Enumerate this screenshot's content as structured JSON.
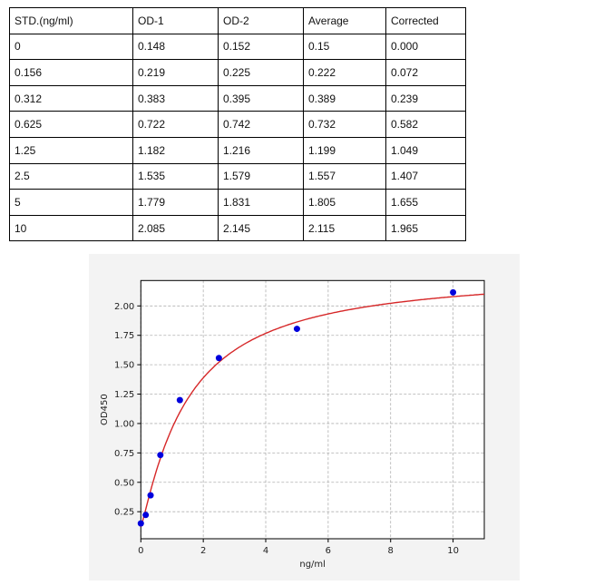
{
  "table": {
    "headers": [
      "STD.(ng/ml)",
      "OD-1",
      "OD-2",
      "Average",
      "Corrected"
    ],
    "rows": [
      [
        "0",
        "0.148",
        "0.152",
        "0.15",
        "0.000"
      ],
      [
        "0.156",
        "0.219",
        "0.225",
        "0.222",
        "0.072"
      ],
      [
        "0.312",
        "0.383",
        "0.395",
        "0.389",
        "0.239"
      ],
      [
        "0.625",
        "0.722",
        "0.742",
        "0.732",
        "0.582"
      ],
      [
        "1.25",
        "1.182",
        "1.216",
        "1.199",
        "1.049"
      ],
      [
        "2.5",
        "1.535",
        "1.579",
        "1.557",
        "1.407"
      ],
      [
        "5",
        "1.779",
        "1.831",
        "1.805",
        "1.655"
      ],
      [
        "10",
        "2.085",
        "2.145",
        "2.115",
        "1.965"
      ]
    ]
  },
  "chart_data": {
    "type": "scatter",
    "title": "",
    "xlabel": "ng/ml",
    "ylabel": "OD450",
    "xlim": [
      0,
      11
    ],
    "ylim": [
      0.02,
      2.216
    ],
    "xticks": [
      0,
      2,
      4,
      6,
      8,
      10
    ],
    "yticks": [
      "0.25",
      "0.50",
      "0.75",
      "1.00",
      "1.25",
      "1.50",
      "1.75",
      "2.00"
    ],
    "grid": true,
    "points": {
      "x": [
        0,
        0.156,
        0.312,
        0.625,
        1.25,
        2.5,
        5,
        10
      ],
      "y": [
        0.15,
        0.222,
        0.389,
        0.732,
        1.199,
        1.557,
        1.805,
        2.115
      ],
      "color": "#0000dd"
    },
    "fit_curve": {
      "type": "4-parameter logistic",
      "color": "#d62728"
    }
  }
}
